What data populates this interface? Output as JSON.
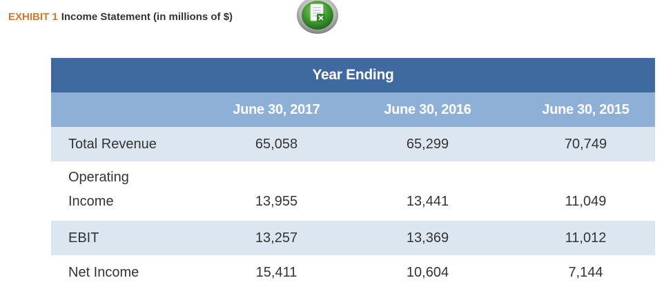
{
  "exhibit": {
    "label": "EXHIBIT 1",
    "title": "Income Statement (in millions of $)",
    "icon": "excel-spreadsheet-icon"
  },
  "table": {
    "group_header": "Year Ending",
    "columns": [
      "June 30, 2017",
      "June 30, 2016",
      "June 30, 2015"
    ],
    "rows": [
      {
        "label": "Total Revenue",
        "values": [
          "65,058",
          "65,299",
          "70,749"
        ]
      },
      {
        "label_line1": "Operating",
        "label_line2": "Income",
        "values": [
          "13,955",
          "13,441",
          "11,049"
        ]
      },
      {
        "label": "EBIT",
        "values": [
          "13,257",
          "13,369",
          "11,012"
        ]
      },
      {
        "label": "Net Income",
        "values": [
          "15,411",
          "10,604",
          "7,144"
        ]
      }
    ]
  },
  "colors": {
    "exhibit_label": "#d9752a",
    "header_dark": "#3e6aa0",
    "header_light": "#8eb0d6",
    "row_shade": "#dbe6f1"
  }
}
